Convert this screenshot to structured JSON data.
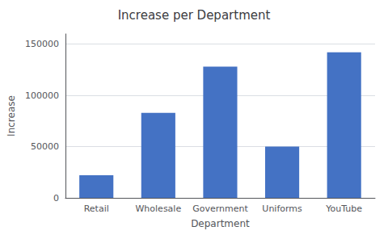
{
  "chart_data": {
    "type": "bar",
    "title": "Increase per Department",
    "xlabel": "Department",
    "ylabel": "Increase",
    "categories": [
      "Retail",
      "Wholesale",
      "Government",
      "Uniforms",
      "YouTube"
    ],
    "values": [
      22000,
      83000,
      128000,
      50000,
      142000
    ],
    "color": "#4472c4",
    "ylim": [
      0,
      160000
    ],
    "yticks": [
      0,
      50000,
      100000,
      150000
    ],
    "grid": true
  }
}
